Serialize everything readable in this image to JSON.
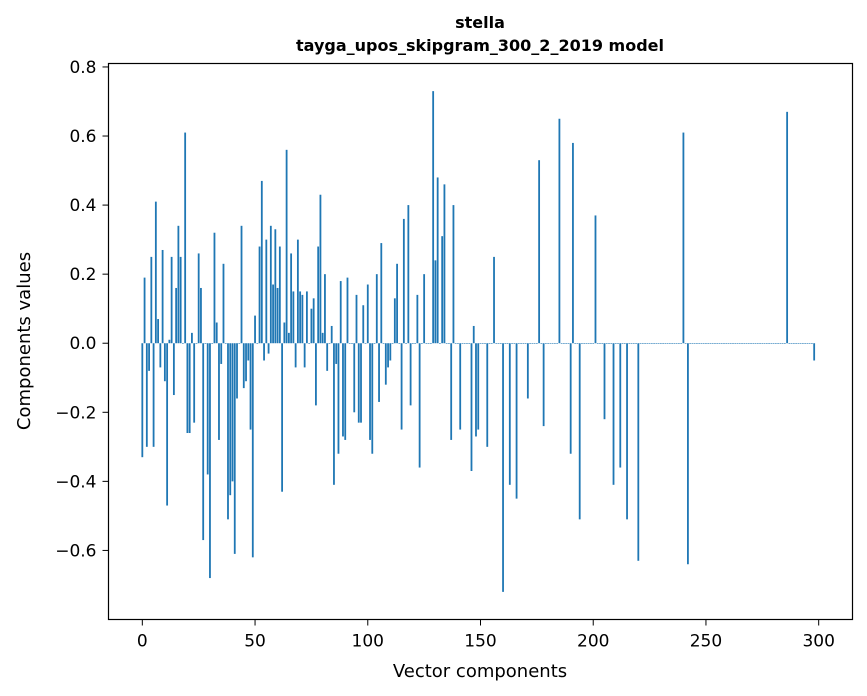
{
  "chart_data": {
    "type": "bar",
    "title": "stella",
    "subtitle": "tayga_upos_skipgram_300_2_2019 model",
    "xlabel": "Vector components",
    "ylabel": "Components values",
    "xlim": [
      -15,
      315
    ],
    "ylim": [
      -0.8,
      0.81
    ],
    "xticks": [
      0,
      50,
      100,
      150,
      200,
      250,
      300
    ],
    "yticks": [
      -0.6,
      -0.4,
      -0.2,
      0.0,
      0.2,
      0.4,
      0.6,
      0.8
    ],
    "xtick_labels": [
      "0",
      "50",
      "100",
      "150",
      "200",
      "250",
      "300"
    ],
    "ytick_labels": [
      "−0.6",
      "−0.4",
      "−0.2",
      "0.0",
      "0.2",
      "0.4",
      "0.6",
      "0.8"
    ],
    "grid": false,
    "bar_color": "#1f77b4",
    "values": [
      -0.33,
      0.19,
      -0.3,
      -0.08,
      0.25,
      -0.3,
      0.41,
      0.07,
      -0.07,
      0.27,
      -0.11,
      -0.47,
      0.01,
      0.25,
      -0.15,
      0.16,
      0.34,
      0.25,
      0.0,
      0.61,
      -0.26,
      -0.26,
      0.03,
      -0.23,
      0.0,
      0.26,
      0.16,
      -0.57,
      0.0,
      -0.38,
      -0.68,
      0.0,
      0.32,
      0.06,
      -0.28,
      -0.06,
      0.23,
      0.0,
      -0.51,
      -0.44,
      -0.4,
      -0.61,
      -0.16,
      0.0,
      0.34,
      -0.13,
      -0.11,
      -0.05,
      -0.25,
      -0.62,
      0.08,
      0.0,
      0.28,
      0.47,
      -0.05,
      0.3,
      -0.03,
      0.34,
      0.17,
      0.33,
      0.16,
      0.28,
      -0.43,
      0.06,
      0.56,
      0.03,
      0.26,
      0.15,
      -0.07,
      0.3,
      0.15,
      0.14,
      -0.07,
      0.15,
      0.0,
      0.1,
      0.13,
      -0.18,
      0.28,
      0.43,
      0.03,
      0.2,
      -0.08,
      0.0,
      0.05,
      -0.41,
      -0.06,
      -0.32,
      0.18,
      -0.27,
      -0.28,
      0.19,
      0.0,
      0.0,
      -0.2,
      0.14,
      -0.23,
      -0.23,
      0.11,
      0.0,
      0.17,
      -0.28,
      -0.32,
      0.0,
      0.2,
      -0.17,
      0.29,
      0.0,
      -0.12,
      -0.07,
      -0.05,
      0.0,
      0.13,
      0.23,
      0.0,
      -0.25,
      0.36,
      0.0,
      0.4,
      -0.18,
      0.0,
      0.0,
      0.14,
      -0.36,
      0.0,
      0.2,
      0.0,
      0.0,
      0.0,
      0.73,
      0.24,
      0.48,
      0.0,
      0.31,
      0.46,
      0.0,
      0.0,
      -0.28,
      0.4,
      0.0,
      0.0,
      -0.25,
      0.0,
      0.0,
      0.0,
      0.0,
      -0.37,
      0.05,
      -0.27,
      -0.25,
      0.0,
      0.0,
      0.0,
      -0.3,
      0.0,
      0.0,
      0.25,
      0.0,
      0.0,
      0.0,
      -0.72,
      0.0,
      0.0,
      -0.41,
      0.0,
      0.0,
      -0.45,
      0.0,
      0.0,
      0.0,
      0.0,
      -0.16,
      0.0,
      0.0,
      0.0,
      0.0,
      0.53,
      0.0,
      -0.24,
      0.0,
      0.0,
      0.0,
      0.0,
      0.0,
      0.0,
      0.65,
      0.0,
      0.0,
      0.0,
      0.0,
      -0.32,
      0.58,
      0.0,
      0.0,
      -0.51,
      0.0,
      0.0,
      0.0,
      0.0,
      0.0,
      0.0,
      0.37,
      0.0,
      0.0,
      0.0,
      -0.22,
      0.0,
      0.0,
      0.0,
      -0.41,
      0.0,
      0.0,
      -0.36,
      0.0,
      0.0,
      -0.51,
      0.0,
      0.0,
      0.0,
      0.0,
      -0.63,
      0.0,
      0.0,
      0.0,
      0.0,
      0.0,
      0.0,
      0.0,
      0.0,
      0.0,
      0.0,
      0.0,
      0.0,
      0.0,
      0.0,
      0.0,
      0.0,
      0.0,
      0.0,
      0.0,
      0.61,
      0.0,
      -0.64,
      0.0,
      0.0,
      0.0,
      0.0,
      0.0,
      0.0,
      0.0,
      0.0,
      0.0,
      0.0,
      0.0,
      0.0,
      0.0,
      0.0,
      0.0,
      0.0,
      0.0,
      0.0,
      0.0,
      0.0,
      0.0,
      0.0,
      0.0,
      0.0,
      0.0,
      0.0,
      0.0,
      0.0,
      0.0,
      0.0,
      0.0,
      0.0,
      0.0,
      0.0,
      0.0,
      0.0,
      0.0,
      0.0,
      0.0,
      0.0,
      0.0,
      0.0,
      0.0,
      0.67,
      0.0,
      0.0,
      0.0,
      0.0,
      0.0,
      0.0,
      0.0,
      0.0,
      0.0,
      0.0,
      0.0,
      -0.05
    ]
  }
}
